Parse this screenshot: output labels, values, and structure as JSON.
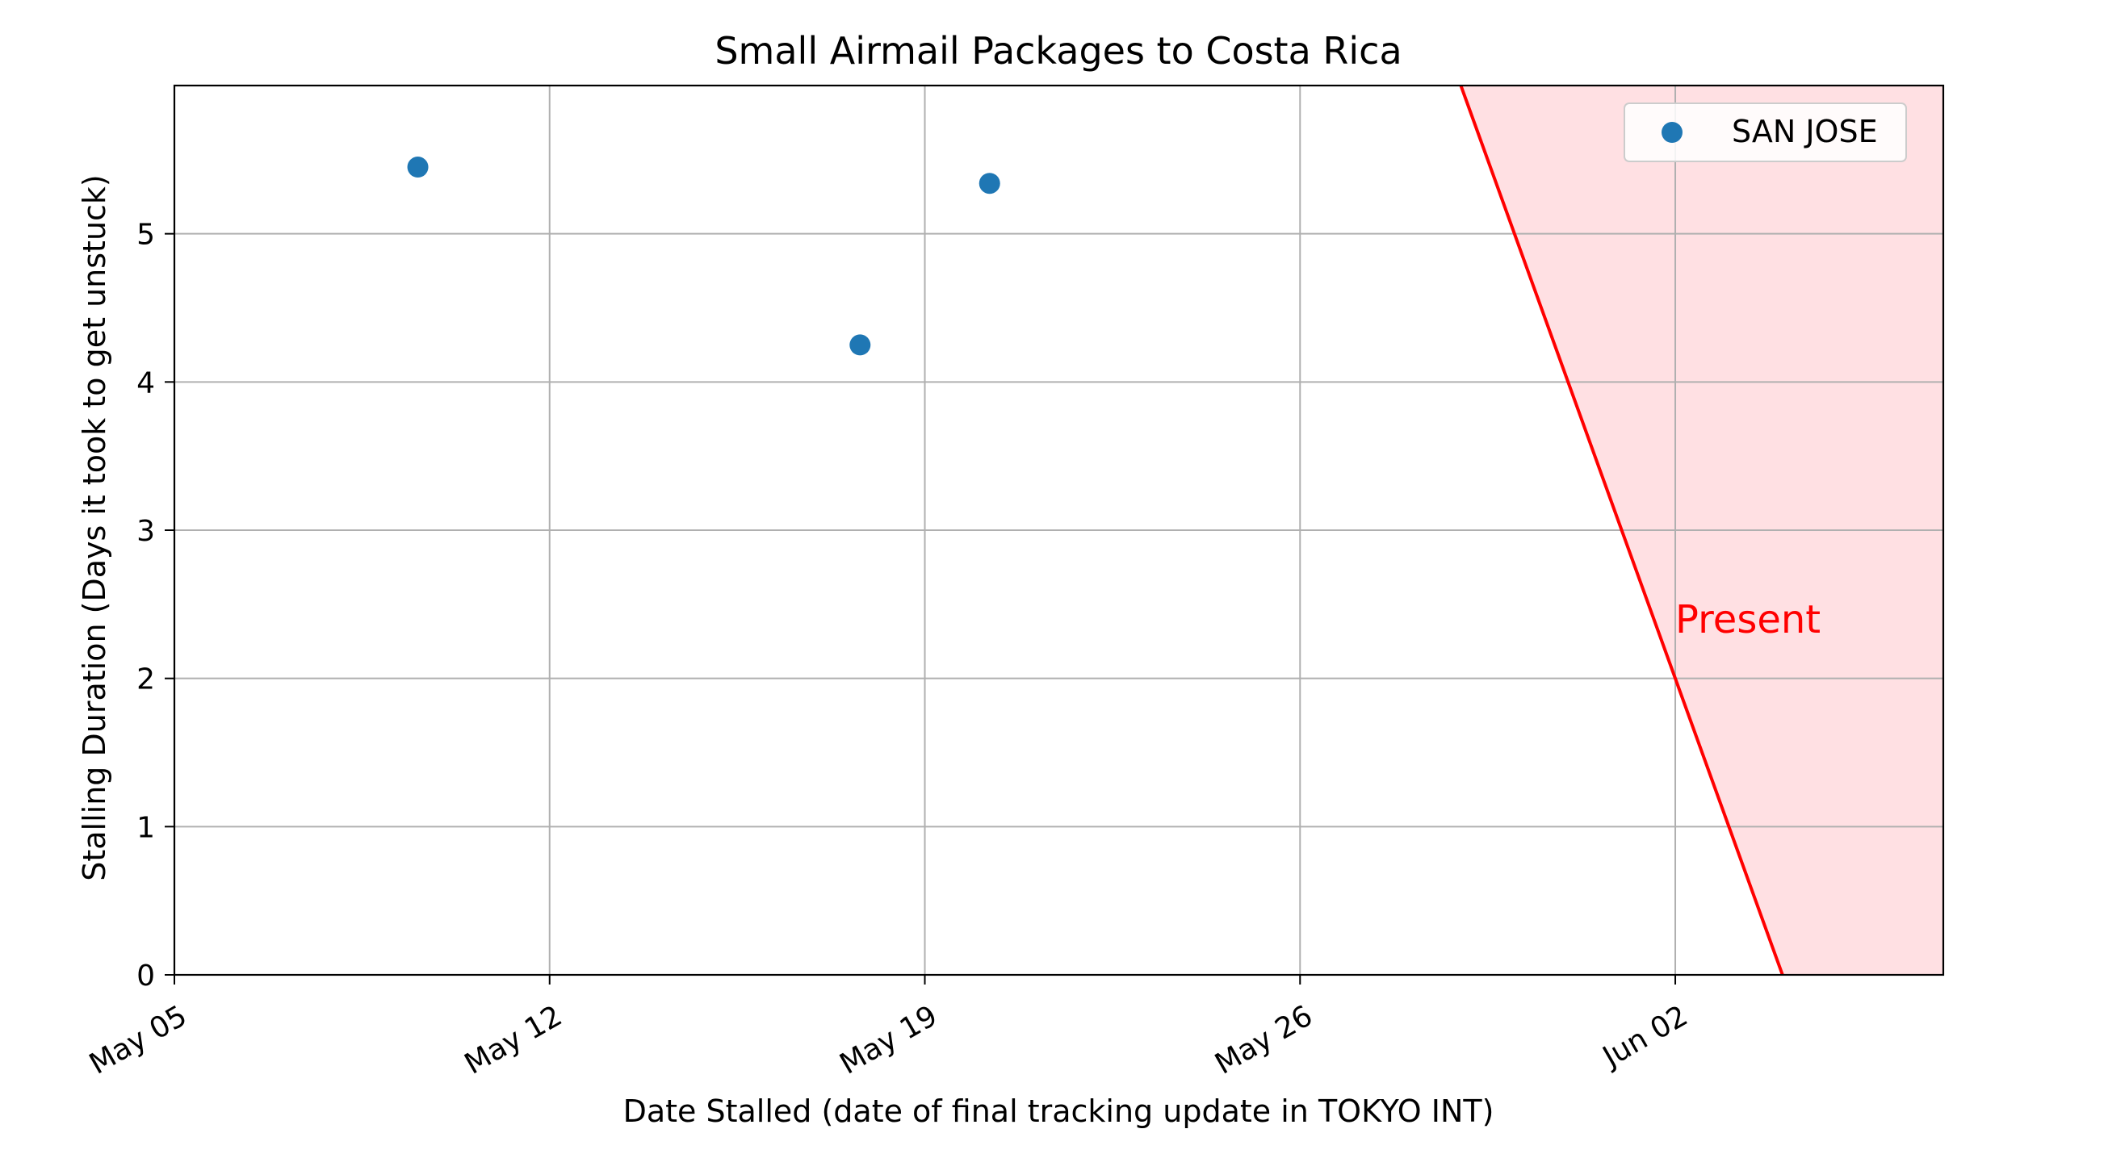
{
  "chart_data": {
    "type": "scatter",
    "title": "Small Airmail Packages to Costa Rica",
    "xlabel": "Date Stalled (date of final tracking update in TOKYO INT)",
    "ylabel": "Stalling Duration (Days it took to get unstuck)",
    "x_type": "date",
    "xlim": [
      "2024-05-05",
      "2024-06-07"
    ],
    "ylim": [
      0,
      6
    ],
    "x_ticks": [
      {
        "date": "2024-05-05",
        "label": "May 05"
      },
      {
        "date": "2024-05-12",
        "label": "May 12"
      },
      {
        "date": "2024-05-19",
        "label": "May 19"
      },
      {
        "date": "2024-05-26",
        "label": "May 26"
      },
      {
        "date": "2024-06-02",
        "label": "Jun 02"
      }
    ],
    "y_ticks": [
      0,
      1,
      2,
      3,
      4,
      5
    ],
    "grid": true,
    "legend_position": "upper right",
    "series": [
      {
        "name": "SAN JOSE",
        "color": "#1f77b4",
        "points": [
          {
            "x": "2024-05-09 13:00",
            "y": 5.45
          },
          {
            "x": "2024-05-17 19:00",
            "y": 4.25
          },
          {
            "x": "2024-05-20 05:00",
            "y": 5.34
          }
        ]
      }
    ],
    "present_line": {
      "color": "#ff0000",
      "fill": "#ffe0e3",
      "points": [
        {
          "x": "2024-05-29 00:00",
          "y": 6
        },
        {
          "x": "2024-06-04 00:00",
          "y": 0
        }
      ]
    },
    "annotations": [
      {
        "text": "Present",
        "x": "2024-06-02",
        "y": 2.4,
        "color": "#ff0000"
      }
    ]
  }
}
